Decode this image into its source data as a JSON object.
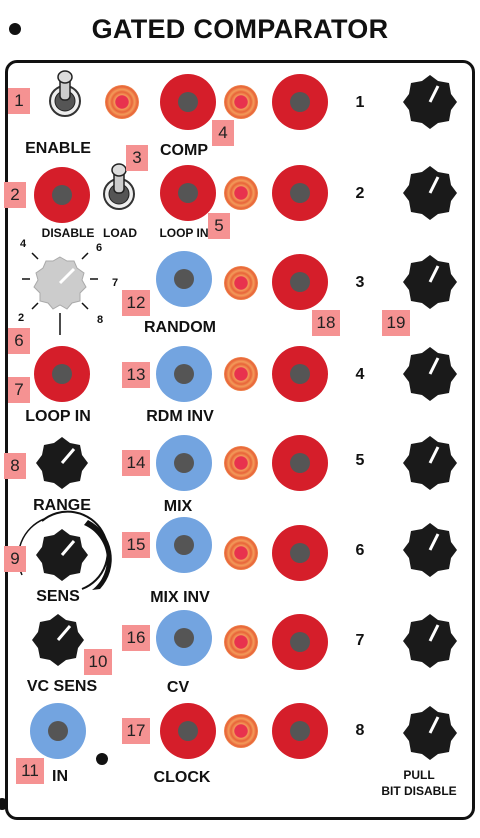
{
  "title": "GATED COMPARATOR",
  "labels": {
    "enable": "ENABLE",
    "comp": "COMP",
    "disable": "DISABLE",
    "load": "LOAD",
    "loop_in_top": "LOOP IN",
    "random": "RANDOM",
    "loop_in": "LOOP IN",
    "rdm_inv": "RDM INV",
    "range": "RANGE",
    "mix": "MIX",
    "sens": "SENS",
    "mix_inv": "MIX INV",
    "vc_sens": "VC SENS",
    "cv": "CV",
    "in": "IN",
    "clock": "CLOCK",
    "pull": "PULL",
    "bit_disable": "BIT DISABLE"
  },
  "rows": [
    "1",
    "2",
    "3",
    "4",
    "5",
    "6",
    "7",
    "8"
  ],
  "switch_positions": [
    "4",
    "6",
    "7",
    "8",
    "2"
  ],
  "tags": [
    "1",
    "2",
    "3",
    "4",
    "5",
    "6",
    "7",
    "8",
    "9",
    "10",
    "11",
    "12",
    "13",
    "14",
    "15",
    "16",
    "17",
    "18",
    "19"
  ],
  "colors": {
    "jack_red": "#d51e2a",
    "jack_blue": "#73a4e0",
    "tag": "#f59292",
    "knob": "#1a1a1a"
  }
}
